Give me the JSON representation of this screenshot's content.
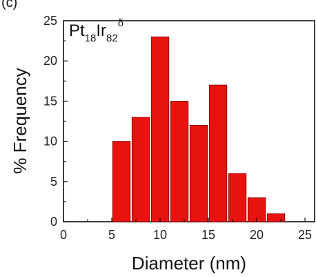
{
  "chart_data": {
    "type": "bar",
    "title": "",
    "xlabel": "Diameter (nm)",
    "ylabel": "% Frequency",
    "xlim": [
      0,
      26
    ],
    "ylim": [
      0,
      25
    ],
    "xticks": [
      0,
      5,
      10,
      15,
      20,
      25
    ],
    "yticks": [
      0,
      5,
      10,
      15,
      20,
      25
    ],
    "bin_width": 2,
    "x": [
      6,
      8,
      10,
      12,
      14,
      16,
      18,
      20,
      22
    ],
    "values": [
      10,
      13,
      23,
      15,
      12,
      17,
      6,
      3,
      1
    ],
    "bar_color": "#e8120f",
    "bar_edge_color": "#7a0000",
    "annotation": {
      "base": "Pt",
      "sub1": "18",
      "mid": "Ir",
      "sub2": "82",
      "sup": "δ"
    },
    "panel_label": "(c)",
    "grid": false
  }
}
